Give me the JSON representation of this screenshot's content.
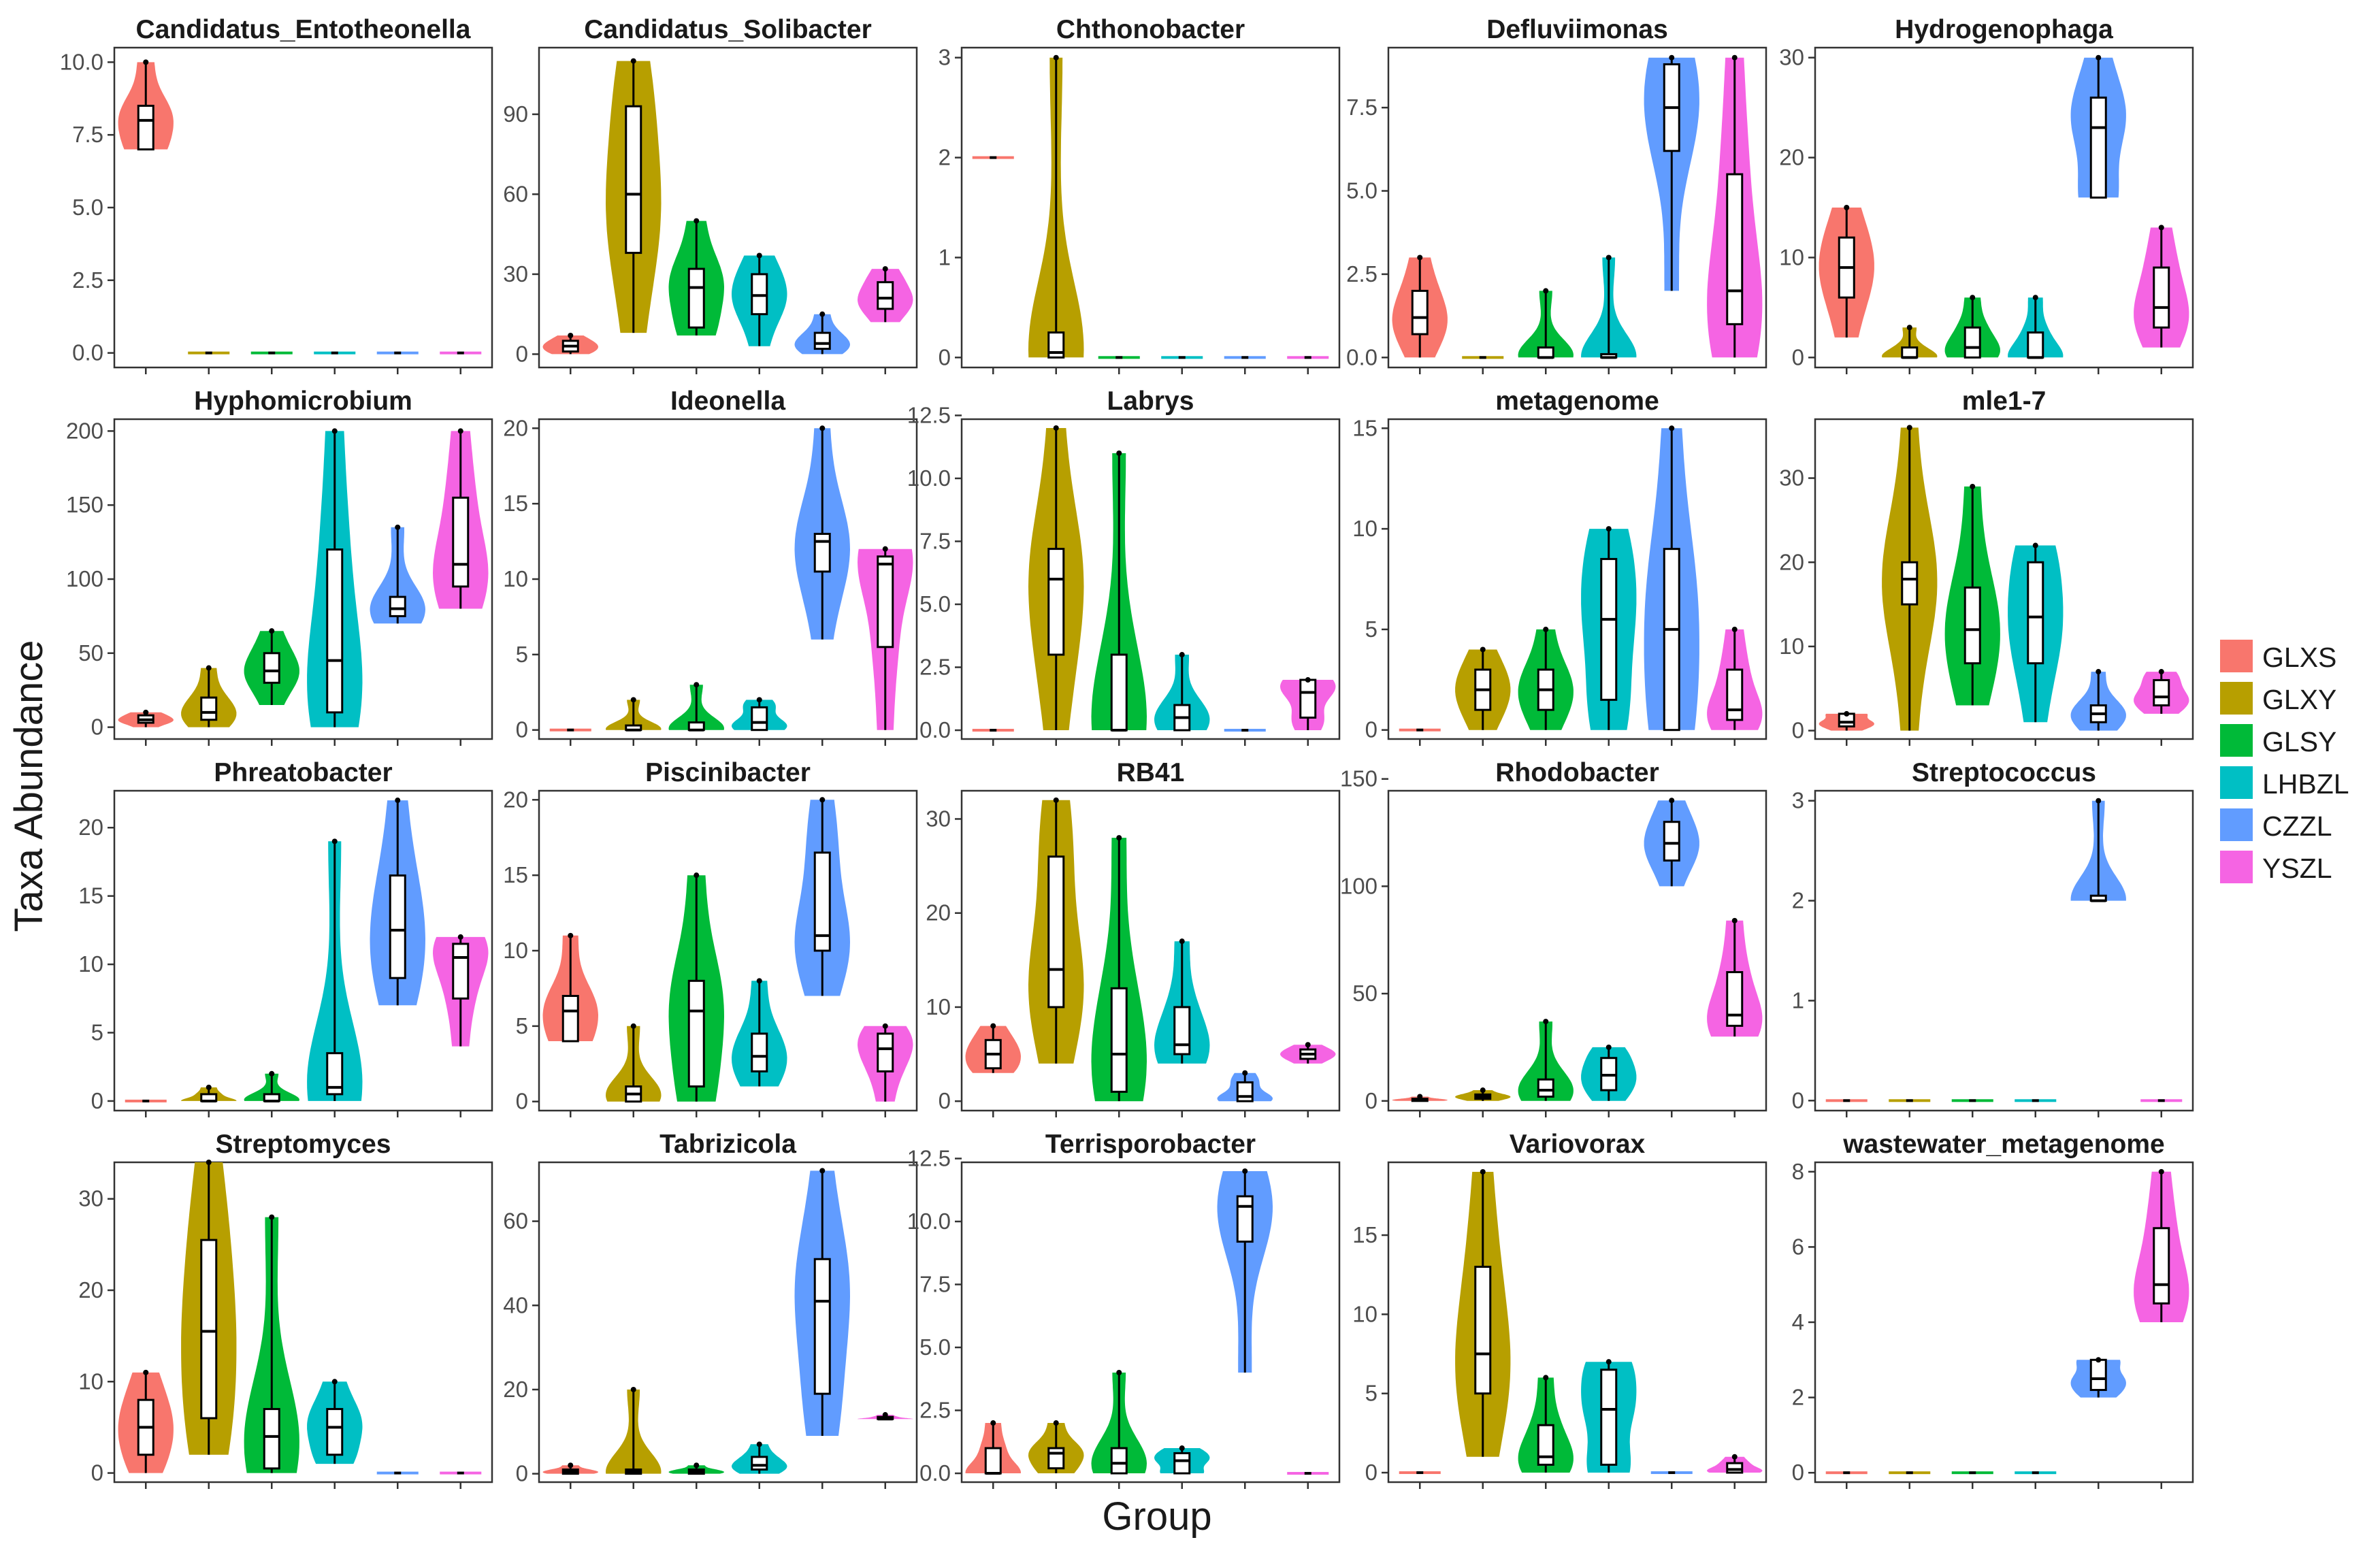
{
  "chart_data": {
    "type": "violin",
    "xlabel": "Group",
    "ylabel": "Taxa Abundance",
    "legend": {
      "position": "right",
      "entries": [
        "GLXS",
        "GLXY",
        "GLSY",
        "LHBZL",
        "CZZL",
        "YSZL"
      ]
    },
    "colors": {
      "GLXS": "#F8766D",
      "GLXY": "#B79F00",
      "GLSY": "#00BA38",
      "LHBZL": "#00BFC4",
      "CZZL": "#619CFF",
      "YSZL": "#F564E3"
    },
    "groups": [
      "GLXS",
      "GLXY",
      "GLSY",
      "LHBZL",
      "CZZL",
      "YSZL"
    ],
    "panels": [
      {
        "title": "Candidatus_Entotheonella",
        "ylim": [
          -0.5,
          10.5
        ],
        "ticks": [
          0,
          2.5,
          5,
          7.5,
          10
        ],
        "tick_labels": [
          "0.0",
          "2.5",
          "5.0",
          "7.5",
          "10.0"
        ],
        "stats": [
          [
            7,
            7,
            8,
            8.5,
            10
          ],
          [
            0,
            0,
            0,
            0,
            0
          ],
          [
            0,
            0,
            0,
            0,
            0
          ],
          [
            0,
            0,
            0,
            0,
            0
          ],
          [
            0,
            0,
            0,
            0,
            0
          ],
          [
            0,
            0,
            0,
            0,
            0
          ]
        ]
      },
      {
        "title": "Candidatus_Solibacter",
        "ylim": [
          -5,
          115
        ],
        "ticks": [
          0,
          30,
          60,
          90
        ],
        "tick_labels": [
          "0",
          "30",
          "60",
          "90"
        ],
        "stats": [
          [
            0,
            1,
            3,
            5,
            7
          ],
          [
            8,
            38,
            60,
            93,
            110
          ],
          [
            7,
            10,
            25,
            32,
            50
          ],
          [
            3,
            15,
            22,
            30,
            37
          ],
          [
            0,
            2,
            4,
            8,
            15
          ],
          [
            12,
            17,
            21,
            27,
            32
          ]
        ]
      },
      {
        "title": "Chthonobacter",
        "ylim": [
          -0.1,
          3.1
        ],
        "ticks": [
          0,
          1,
          2,
          3
        ],
        "tick_labels": [
          "0",
          "1",
          "2",
          "3"
        ],
        "stats": [
          [
            2,
            2,
            2,
            2,
            2
          ],
          [
            0,
            0,
            0.05,
            0.25,
            3
          ],
          [
            0,
            0,
            0,
            0,
            0
          ],
          [
            0,
            0,
            0,
            0,
            0
          ],
          [
            0,
            0,
            0,
            0,
            0
          ],
          [
            0,
            0,
            0,
            0,
            0
          ]
        ]
      },
      {
        "title": "Defluviimonas",
        "ylim": [
          -0.3,
          9.3
        ],
        "ticks": [
          0,
          2.5,
          5,
          7.5
        ],
        "tick_labels": [
          "0.0",
          "2.5",
          "5.0",
          "7.5"
        ],
        "stats": [
          [
            0,
            0.7,
            1.2,
            2,
            3
          ],
          [
            0,
            0,
            0,
            0,
            0
          ],
          [
            0,
            0,
            0,
            0.3,
            2
          ],
          [
            0,
            0,
            0,
            0.1,
            3
          ],
          [
            2,
            6.2,
            7.5,
            8.8,
            9
          ],
          [
            0,
            1,
            2,
            5.5,
            9
          ]
        ]
      },
      {
        "title": "Hydrogenophaga",
        "ylim": [
          -1,
          31
        ],
        "ticks": [
          0,
          10,
          20,
          30
        ],
        "tick_labels": [
          "0",
          "10",
          "20",
          "30"
        ],
        "stats": [
          [
            2,
            6,
            9,
            12,
            15
          ],
          [
            0,
            0,
            0,
            1,
            3
          ],
          [
            0,
            0,
            1,
            3,
            6
          ],
          [
            0,
            0,
            0,
            2.5,
            6
          ],
          [
            16,
            16,
            23,
            26,
            30
          ],
          [
            1,
            3,
            5,
            9,
            13
          ]
        ]
      },
      {
        "title": "Hyphomicrobium",
        "ylim": [
          -8,
          208
        ],
        "ticks": [
          0,
          50,
          100,
          150,
          200
        ],
        "tick_labels": [
          "0",
          "50",
          "100",
          "150",
          "200"
        ],
        "stats": [
          [
            0,
            3,
            5,
            8,
            10
          ],
          [
            0,
            5,
            10,
            20,
            40
          ],
          [
            15,
            30,
            38,
            50,
            65
          ],
          [
            0,
            10,
            45,
            120,
            200
          ],
          [
            70,
            75,
            80,
            88,
            135
          ],
          [
            80,
            95,
            110,
            155,
            200
          ]
        ]
      },
      {
        "title": "Ideonella",
        "ylim": [
          -0.6,
          20.6
        ],
        "ticks": [
          0,
          5,
          10,
          15,
          20
        ],
        "tick_labels": [
          "0",
          "5",
          "10",
          "15",
          "20"
        ],
        "stats": [
          [
            0,
            0,
            0,
            0,
            0
          ],
          [
            0,
            0,
            0,
            0.3,
            2
          ],
          [
            0,
            0,
            0,
            0.5,
            3
          ],
          [
            0,
            0,
            0.5,
            1.5,
            2
          ],
          [
            6,
            10.5,
            12.5,
            13,
            20
          ],
          [
            0,
            5.5,
            11,
            11.5,
            12
          ]
        ]
      },
      {
        "title": "Labrys",
        "ylim": [
          -0.35,
          12.35
        ],
        "ticks": [
          0,
          2.5,
          5,
          7.5,
          10,
          12.5
        ],
        "tick_labels": [
          "0.0",
          "2.5",
          "5.0",
          "7.5",
          "10.0",
          "12.5"
        ],
        "stats": [
          [
            0,
            0,
            0,
            0,
            0
          ],
          [
            0,
            3,
            6,
            7.2,
            12
          ],
          [
            0,
            0,
            0,
            3,
            11
          ],
          [
            0,
            0,
            0.5,
            1,
            3
          ],
          [
            0,
            0,
            0,
            0,
            0
          ],
          [
            0,
            0.5,
            1.5,
            2,
            2
          ]
        ]
      },
      {
        "title": "metagenome",
        "ylim": [
          -0.45,
          15.45
        ],
        "ticks": [
          0,
          5,
          10,
          15
        ],
        "tick_labels": [
          "0",
          "5",
          "10",
          "15"
        ],
        "stats": [
          [
            0,
            0,
            0,
            0,
            0
          ],
          [
            0,
            1,
            2,
            3,
            4
          ],
          [
            0,
            1,
            2,
            3,
            5
          ],
          [
            0,
            1.5,
            5.5,
            8.5,
            10
          ],
          [
            0,
            0,
            5,
            9,
            15
          ],
          [
            0,
            0.5,
            1,
            3,
            5
          ]
        ]
      },
      {
        "title": "mle1-7",
        "ylim": [
          -1,
          37
        ],
        "ticks": [
          0,
          10,
          20,
          30
        ],
        "tick_labels": [
          "0",
          "10",
          "20",
          "30"
        ],
        "stats": [
          [
            0,
            0.5,
            1,
            2,
            2
          ],
          [
            0,
            15,
            18,
            20,
            36
          ],
          [
            3,
            8,
            12,
            17,
            29
          ],
          [
            1,
            8,
            13.5,
            20,
            22
          ],
          [
            0,
            1,
            2,
            3,
            7
          ],
          [
            2,
            3,
            4,
            6,
            7
          ]
        ]
      },
      {
        "title": "Phreatobacter",
        "ylim": [
          -0.7,
          22.7
        ],
        "ticks": [
          0,
          5,
          10,
          15,
          20
        ],
        "tick_labels": [
          "0",
          "5",
          "10",
          "15",
          "20"
        ],
        "stats": [
          [
            0,
            0,
            0,
            0,
            0
          ],
          [
            0,
            0,
            0,
            0.5,
            1
          ],
          [
            0,
            0,
            0,
            0.5,
            2
          ],
          [
            0,
            0.5,
            1,
            3.5,
            19
          ],
          [
            7,
            9,
            12.5,
            16.5,
            22
          ],
          [
            4,
            7.5,
            10.5,
            11.5,
            12
          ]
        ]
      },
      {
        "title": "Piscinibacter",
        "ylim": [
          -0.6,
          20.6
        ],
        "ticks": [
          0,
          5,
          10,
          15,
          20
        ],
        "tick_labels": [
          "0",
          "5",
          "10",
          "15",
          "20"
        ],
        "stats": [
          [
            4,
            4,
            6,
            7,
            11
          ],
          [
            0,
            0,
            0.5,
            1,
            5
          ],
          [
            0,
            1,
            6,
            8,
            15
          ],
          [
            1,
            2,
            3,
            4.5,
            8
          ],
          [
            7,
            10,
            11,
            16.5,
            20
          ],
          [
            0,
            2,
            3.5,
            4.5,
            5
          ]
        ]
      },
      {
        "title": "RB41",
        "ylim": [
          -1,
          33
        ],
        "ticks": [
          0,
          10,
          20,
          30
        ],
        "tick_labels": [
          "0",
          "10",
          "20",
          "30"
        ],
        "stats": [
          [
            3,
            3.5,
            5,
            6.5,
            8
          ],
          [
            4,
            10,
            14,
            26,
            32
          ],
          [
            0,
            1,
            5,
            12,
            28
          ],
          [
            4,
            5,
            6,
            10,
            17
          ],
          [
            0,
            0,
            0.5,
            2,
            3
          ],
          [
            4,
            4.5,
            5,
            5.5,
            6
          ]
        ]
      },
      {
        "title": "Rhodobacter",
        "ylim": [
          -4.5,
          144.5
        ],
        "ticks": [
          0,
          50,
          100,
          150
        ],
        "tick_labels": [
          "0",
          "50",
          "100",
          "150"
        ],
        "stats": [
          [
            0,
            0,
            0.5,
            1,
            2
          ],
          [
            0,
            1,
            2,
            3,
            5
          ],
          [
            0,
            2,
            5,
            10,
            37
          ],
          [
            0,
            5,
            12,
            20,
            25
          ],
          [
            100,
            112,
            120,
            130,
            140
          ],
          [
            30,
            35,
            40,
            60,
            84
          ]
        ]
      },
      {
        "title": "Streptococcus",
        "ylim": [
          -0.1,
          3.1
        ],
        "ticks": [
          0,
          1,
          2,
          3
        ],
        "tick_labels": [
          "0",
          "1",
          "2",
          "3"
        ],
        "stats": [
          [
            0,
            0,
            0,
            0,
            0
          ],
          [
            0,
            0,
            0,
            0,
            0
          ],
          [
            0,
            0,
            0,
            0,
            0
          ],
          [
            0,
            0,
            0,
            0,
            0
          ],
          [
            2,
            2,
            2,
            2.05,
            3
          ],
          [
            0,
            0,
            0,
            0,
            0
          ]
        ]
      },
      {
        "title": "Streptomyces",
        "ylim": [
          -1,
          34
        ],
        "ticks": [
          0,
          10,
          20,
          30
        ],
        "tick_labels": [
          "0",
          "10",
          "20",
          "30"
        ],
        "stats": [
          [
            0,
            2,
            5,
            8,
            11
          ],
          [
            2,
            6,
            15.5,
            25.5,
            34
          ],
          [
            0,
            0.5,
            4,
            7,
            28
          ],
          [
            1,
            2,
            5,
            7,
            10
          ],
          [
            0,
            0,
            0,
            0,
            0
          ],
          [
            0,
            0,
            0,
            0,
            0
          ]
        ]
      },
      {
        "title": "Tabrizicola",
        "ylim": [
          -2,
          74
        ],
        "ticks": [
          0,
          20,
          40,
          60
        ],
        "tick_labels": [
          "0",
          "20",
          "40",
          "60"
        ],
        "stats": [
          [
            0,
            0,
            0.5,
            1,
            2
          ],
          [
            0,
            0,
            0.5,
            1,
            20
          ],
          [
            0,
            0,
            0.5,
            1,
            2
          ],
          [
            0,
            1,
            2,
            4,
            7
          ],
          [
            9,
            19,
            41,
            51,
            72
          ],
          [
            13,
            13,
            13,
            13.5,
            14
          ]
        ]
      },
      {
        "title": "Terrisporobacter",
        "ylim": [
          -0.35,
          12.35
        ],
        "ticks": [
          0,
          2.5,
          5,
          7.5,
          10,
          12.5
        ],
        "tick_labels": [
          "0.0",
          "2.5",
          "5.0",
          "7.5",
          "10.0",
          "12.5"
        ],
        "stats": [
          [
            0,
            0,
            0,
            1,
            2
          ],
          [
            0,
            0.2,
            0.8,
            1,
            2
          ],
          [
            0,
            0,
            0.4,
            1,
            4
          ],
          [
            0,
            0,
            0.5,
            0.8,
            1
          ],
          [
            4,
            9.2,
            10.6,
            11,
            12
          ],
          [
            0,
            0,
            0,
            0,
            0
          ]
        ]
      },
      {
        "title": "Variovorax",
        "ylim": [
          -0.6,
          19.6
        ],
        "ticks": [
          0,
          5,
          10,
          15
        ],
        "tick_labels": [
          "0",
          "5",
          "10",
          "15"
        ],
        "stats": [
          [
            0,
            0,
            0,
            0,
            0
          ],
          [
            1,
            5,
            7.5,
            13,
            19
          ],
          [
            0,
            0.5,
            1,
            3,
            6
          ],
          [
            0,
            0.5,
            4,
            6.5,
            7
          ],
          [
            0,
            0,
            0,
            0,
            0
          ],
          [
            0,
            0,
            0.2,
            0.6,
            1
          ]
        ]
      },
      {
        "title": "wastewater_metagenome",
        "ylim": [
          -0.25,
          8.25
        ],
        "ticks": [
          0,
          2,
          4,
          6,
          8
        ],
        "tick_labels": [
          "0",
          "2",
          "4",
          "6",
          "8"
        ],
        "stats": [
          [
            0,
            0,
            0,
            0,
            0
          ],
          [
            0,
            0,
            0,
            0,
            0
          ],
          [
            0,
            0,
            0,
            0,
            0
          ],
          [
            0,
            0,
            0,
            0,
            0
          ],
          [
            2,
            2.2,
            2.5,
            3,
            3
          ],
          [
            4,
            4.5,
            5,
            6.5,
            8
          ]
        ]
      }
    ]
  }
}
